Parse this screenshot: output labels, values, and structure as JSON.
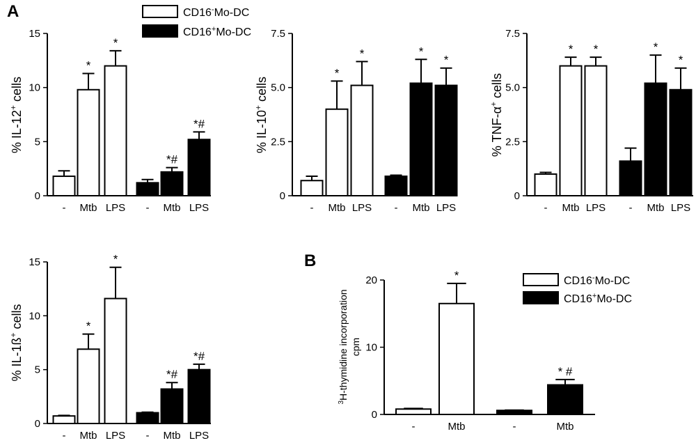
{
  "panel_labels": [
    "A",
    "B"
  ],
  "legend_top": {
    "items": [
      {
        "text": "CD16",
        "sup": "-",
        "rest": "Mo-DC",
        "fill": "#ffffff"
      },
      {
        "text": "CD16",
        "sup": "+",
        "rest": "Mo-DC",
        "fill": "#000000"
      }
    ]
  },
  "legend_b": {
    "items": [
      {
        "text": "CD16",
        "sup": "-",
        "rest": "Mo-DC",
        "fill": "#ffffff"
      },
      {
        "text": "CD16",
        "sup": "+",
        "rest": "Mo-DC",
        "fill": "#000000"
      }
    ]
  },
  "chart_data": [
    {
      "id": "il12",
      "type": "bar",
      "ylabel_pre": "% IL-12",
      "ylabel_sup": "+",
      "ylabel_post": " cells",
      "ylim": [
        0,
        15
      ],
      "yticks": [
        "0",
        "5",
        "10",
        "15"
      ],
      "categories": [
        "-",
        "Mtb",
        "LPS",
        "-",
        "Mtb",
        "LPS"
      ],
      "values": [
        1.8,
        9.8,
        12.0,
        1.2,
        2.2,
        5.2
      ],
      "errors": [
        0.5,
        1.5,
        1.4,
        0.3,
        0.4,
        0.7
      ],
      "groups": [
        "CD16-",
        "CD16-",
        "CD16-",
        "CD16+",
        "CD16+",
        "CD16+"
      ],
      "significance": [
        "",
        "*",
        "*",
        "",
        "*#",
        "*#"
      ]
    },
    {
      "id": "il10",
      "type": "bar",
      "ylabel_pre": "% IL-10",
      "ylabel_sup": "+",
      "ylabel_post": " cells",
      "ylim": [
        0,
        7.5
      ],
      "yticks": [
        "0",
        "2.5",
        "5.0",
        "7.5"
      ],
      "categories": [
        "-",
        "Mtb",
        "LPS",
        "-",
        "Mtb",
        "LPS"
      ],
      "values": [
        0.7,
        4.0,
        5.1,
        0.9,
        5.2,
        5.1
      ],
      "errors": [
        0.2,
        1.3,
        1.1,
        0.05,
        1.1,
        0.8
      ],
      "groups": [
        "CD16-",
        "CD16-",
        "CD16-",
        "CD16+",
        "CD16+",
        "CD16+"
      ],
      "significance": [
        "",
        "*",
        "*",
        "",
        "*",
        "*"
      ]
    },
    {
      "id": "tnf",
      "type": "bar",
      "ylabel_pre": "% TNF-α",
      "ylabel_sup": "+",
      "ylabel_post": " cells",
      "ylim": [
        0,
        7.5
      ],
      "yticks": [
        "0",
        "2.5",
        "5.0",
        "7.5"
      ],
      "categories": [
        "-",
        "Mtb",
        "LPS",
        "-",
        "Mtb",
        "LPS"
      ],
      "values": [
        1.0,
        6.0,
        6.0,
        1.6,
        5.2,
        4.9
      ],
      "errors": [
        0.08,
        0.4,
        0.4,
        0.6,
        1.3,
        1.0
      ],
      "groups": [
        "CD16-",
        "CD16-",
        "CD16-",
        "CD16+",
        "CD16+",
        "CD16+"
      ],
      "significance": [
        "",
        "*",
        "*",
        "",
        "*",
        "*"
      ]
    },
    {
      "id": "il1b",
      "type": "bar",
      "ylabel_pre": "% IL-1ß",
      "ylabel_sup": "+",
      "ylabel_post": " cells",
      "ylim": [
        0,
        15
      ],
      "yticks": [
        "0",
        "5",
        "10",
        "15"
      ],
      "categories": [
        "-",
        "Mtb",
        "LPS",
        "-",
        "Mtb",
        "LPS"
      ],
      "values": [
        0.7,
        6.9,
        11.6,
        1.0,
        3.2,
        5.0
      ],
      "errors": [
        0.05,
        1.4,
        2.9,
        0.05,
        0.6,
        0.5
      ],
      "groups": [
        "CD16-",
        "CD16-",
        "CD16-",
        "CD16+",
        "CD16+",
        "CD16+"
      ],
      "significance": [
        "",
        "*",
        "*",
        "",
        "*#",
        "*#"
      ]
    },
    {
      "id": "thymidine",
      "type": "bar",
      "ylabel_line1_sup": "3",
      "ylabel_line1": "H-thymidine incorporation",
      "ylabel_line2": "cpm",
      "ylim": [
        0,
        20
      ],
      "yticks": [
        "0",
        "10",
        "20"
      ],
      "categories": [
        "-",
        "Mtb",
        "-",
        "Mtb"
      ],
      "values": [
        0.8,
        16.5,
        0.6,
        4.4
      ],
      "errors": [
        0.1,
        3.0,
        0.05,
        0.8
      ],
      "groups": [
        "CD16-",
        "CD16-",
        "CD16+",
        "CD16+"
      ],
      "significance": [
        "",
        "*",
        "",
        "* #"
      ]
    }
  ]
}
